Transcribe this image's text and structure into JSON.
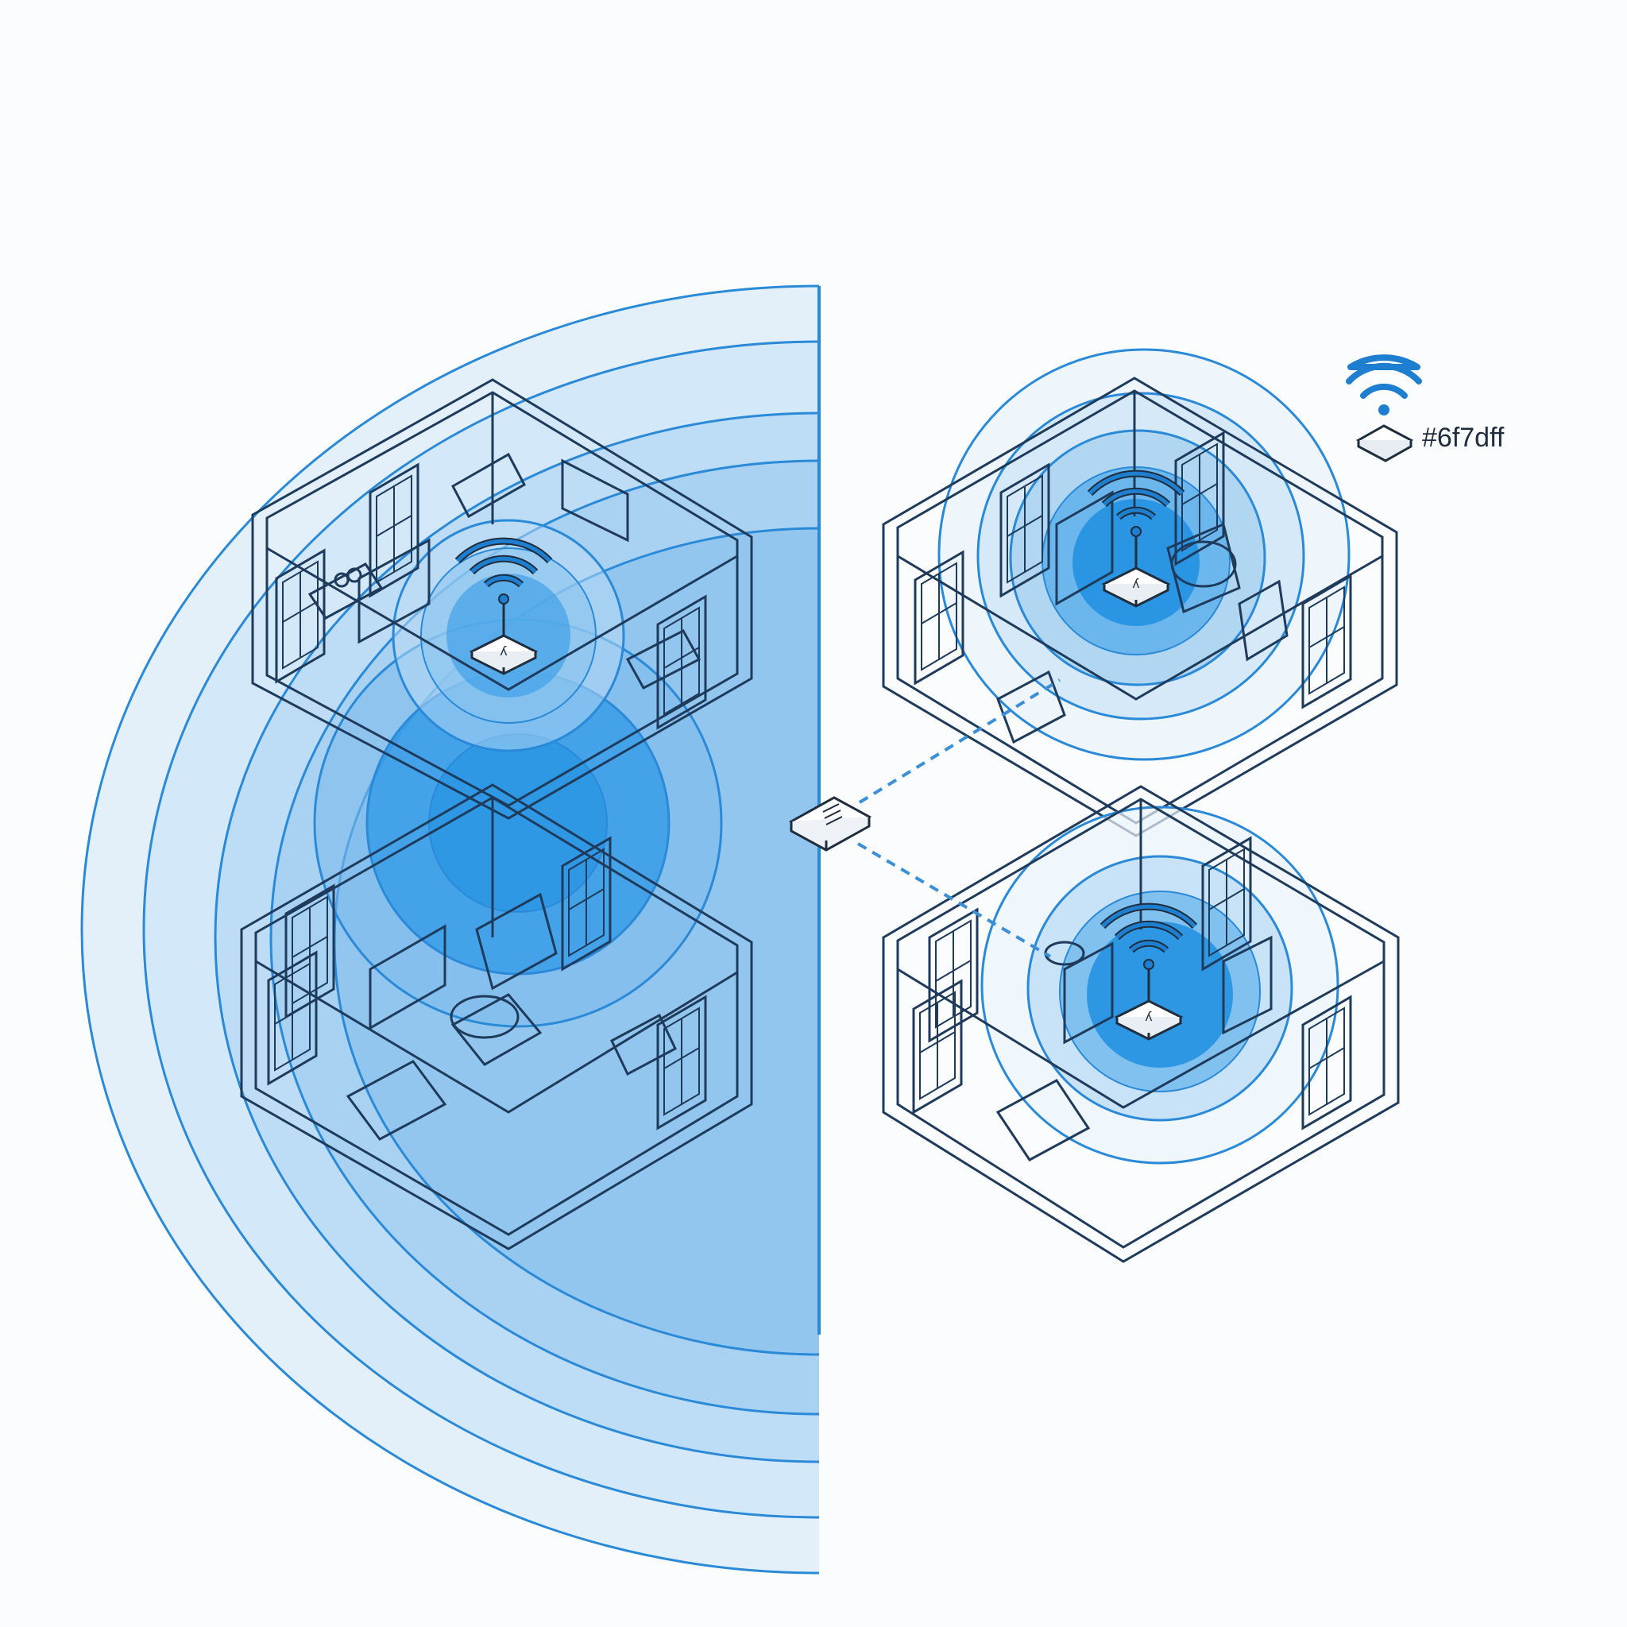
{
  "diagram": {
    "type": "wifi-mesh-coverage-floorplan",
    "legend": {
      "label": "#6f7dff",
      "icon": "wifi-router-icon"
    },
    "colors": {
      "signal_light": "#d6e9f8",
      "signal_mid": "#8fc3ec",
      "signal_strong": "#1e8fe0",
      "signal_stroke": "#2a8ad8",
      "wall_stroke": "#1f3b5c",
      "link_dash": "#3a8fd6",
      "background": "#fbfcfd"
    },
    "rooms": [
      {
        "name": "left-upper-room",
        "has_router": true
      },
      {
        "name": "left-lower-room",
        "has_router": false
      },
      {
        "name": "right-upper-room",
        "has_router": true
      },
      {
        "name": "right-lower-room",
        "has_router": true
      }
    ],
    "hub": {
      "name": "central-switch",
      "icon": "network-switch-icon"
    }
  }
}
